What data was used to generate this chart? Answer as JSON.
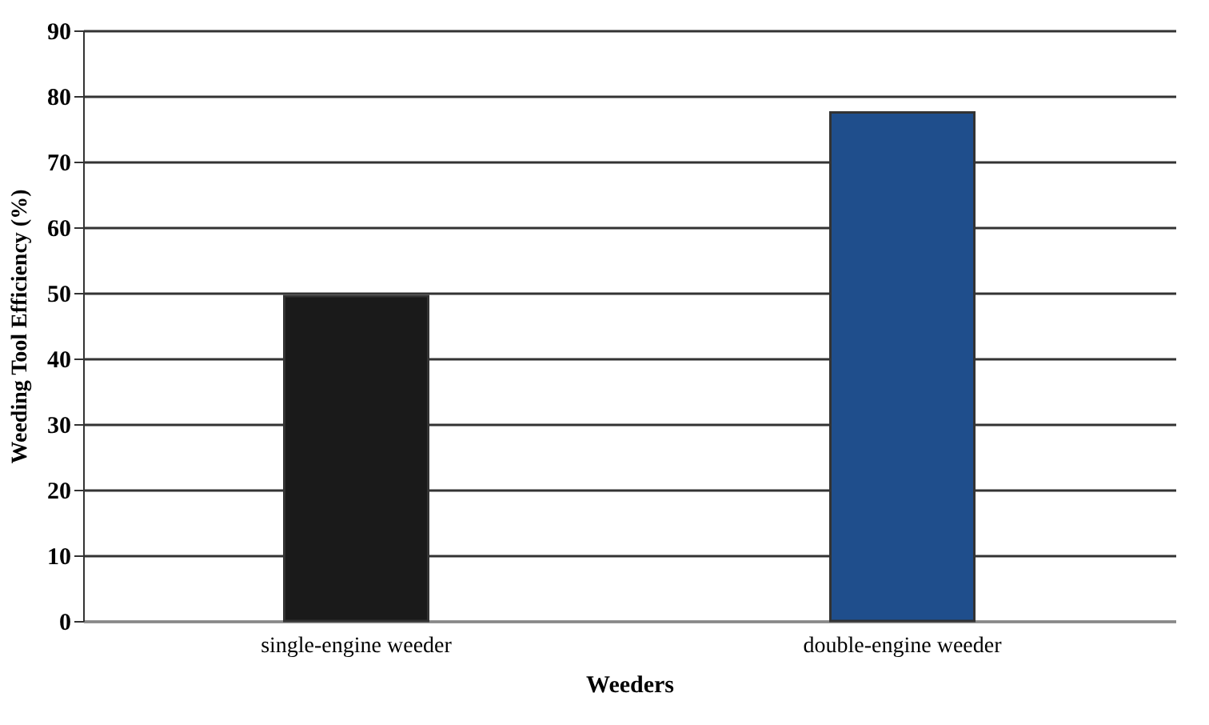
{
  "chart_data": {
    "type": "bar",
    "xlabel": "Weeders",
    "ylabel": "Weeding Tool Efficiency (%)",
    "categories": [
      "single-engine weeder",
      "double-engine weeder"
    ],
    "values": [
      49.5,
      77.5
    ],
    "colors": [
      "#1a1a1a",
      "#1f4e8c"
    ],
    "ylim": [
      0,
      90
    ],
    "yticks": [
      0,
      10,
      20,
      30,
      40,
      50,
      60,
      70,
      80,
      90
    ],
    "grid": "y"
  }
}
